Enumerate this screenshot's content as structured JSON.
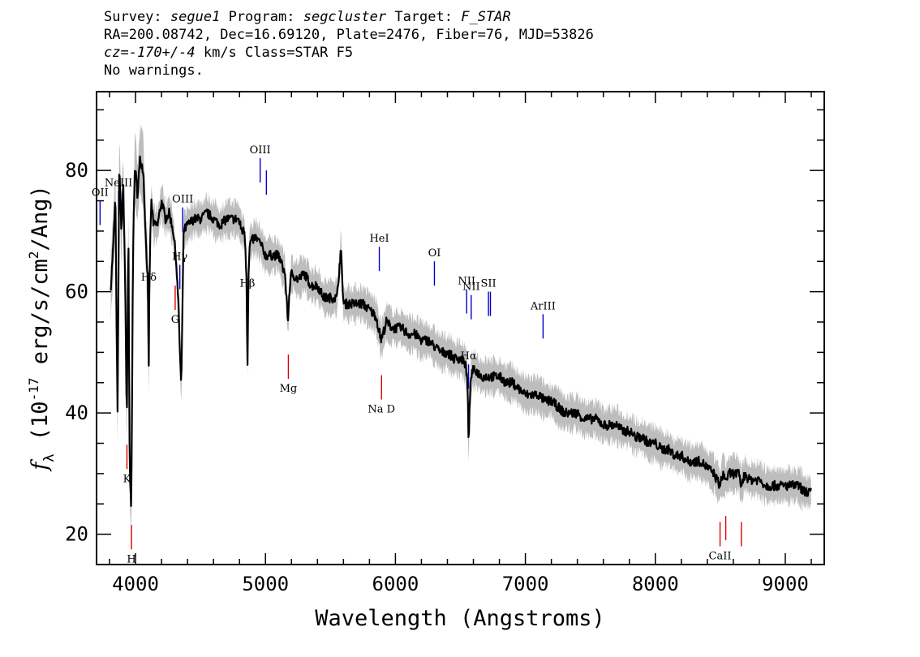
{
  "header": {
    "survey_label": "Survey:",
    "survey": "segue1",
    "program_label": "Program:",
    "program": "segcluster",
    "target_label": "Target:",
    "target": "F_STAR",
    "line2": "RA=200.08742, Dec=16.69120, Plate=2476, Fiber=76, MJD=53826",
    "cz": "cz=-170+/-4",
    "cz_rest": "km/s Class=STAR F5",
    "warnings": "No warnings."
  },
  "chart_data": {
    "type": "line",
    "xlabel": "Wavelength (Angstroms)",
    "ylabel_prefix": "f",
    "ylabel_sub": "λ",
    "ylabel_rest1": "(10",
    "ylabel_exp1": "-17",
    "ylabel_rest2": "erg/s/cm",
    "ylabel_exp2": "2",
    "ylabel_rest3": "/Ang)",
    "xlim": [
      3700,
      9300
    ],
    "ylim": [
      15,
      93
    ],
    "xticks": [
      4000,
      5000,
      6000,
      7000,
      8000,
      9000
    ],
    "yticks": [
      20,
      40,
      60,
      80
    ],
    "x_minor_step": 200,
    "y_minor_step": 5,
    "series": [
      {
        "color": "#000000",
        "x": [
          3810,
          3830,
          3845,
          3855,
          3862,
          3875,
          3890,
          3905,
          3920,
          3933,
          3945,
          3955,
          3968,
          3980,
          3995,
          4015,
          4035,
          4060,
          4080,
          4095,
          4101,
          4107,
          4120,
          4140,
          4170,
          4200,
          4230,
          4260,
          4290,
          4310,
          4330,
          4340,
          4352,
          4370,
          4400,
          4450,
          4500,
          4550,
          4600,
          4650,
          4700,
          4750,
          4790,
          4820,
          4840,
          4855,
          4861,
          4868,
          4880,
          4920,
          4960,
          5000,
          5050,
          5100,
          5150,
          5167,
          5175,
          5183,
          5200,
          5250,
          5300,
          5350,
          5400,
          5450,
          5500,
          5550,
          5580,
          5600,
          5650,
          5700,
          5750,
          5800,
          5850,
          5890,
          5930,
          5980,
          6050,
          6100,
          6150,
          6200,
          6250,
          6300,
          6350,
          6400,
          6450,
          6500,
          6540,
          6555,
          6563,
          6572,
          6590,
          6620,
          6660,
          6700,
          6750,
          6800,
          6850,
          6900,
          6950,
          7000,
          7050,
          7100,
          7150,
          7200,
          7250,
          7300,
          7350,
          7400,
          7450,
          7500,
          7550,
          7600,
          7650,
          7700,
          7750,
          7800,
          7850,
          7900,
          7950,
          8000,
          8050,
          8100,
          8150,
          8200,
          8250,
          8300,
          8350,
          8400,
          8450,
          8498,
          8520,
          8542,
          8570,
          8600,
          8640,
          8662,
          8690,
          8720,
          8760,
          8800,
          8850,
          8900,
          8950,
          9000,
          9050,
          9100,
          9150,
          9200
        ],
        "y": [
          61,
          68,
          76,
          52,
          40,
          82,
          70,
          78,
          62,
          38,
          71,
          30,
          24,
          66,
          81,
          76,
          82,
          80,
          68,
          62,
          44,
          62,
          75,
          71,
          71,
          75,
          72,
          73,
          70,
          66,
          58,
          51,
          44,
          70,
          71,
          72,
          72,
          73,
          72,
          71,
          72,
          72,
          72,
          70,
          70,
          62,
          46,
          62,
          68,
          69,
          68,
          66,
          66,
          66,
          63,
          57,
          55,
          60,
          63,
          62,
          63,
          61,
          61,
          59,
          59,
          59,
          67,
          58,
          58,
          58,
          58,
          57,
          56,
          52,
          55,
          54,
          54,
          53,
          53,
          52,
          52,
          51,
          50,
          50,
          49,
          49,
          48,
          45,
          34,
          43,
          47,
          47,
          46,
          46,
          46,
          46,
          45,
          45,
          44,
          43,
          43,
          43,
          42,
          42,
          41,
          40,
          40,
          40,
          39,
          39,
          39,
          38,
          38,
          38,
          37,
          37,
          36,
          36,
          35,
          35,
          34,
          34,
          33,
          33,
          32,
          32,
          32,
          31,
          30,
          28,
          30,
          29,
          30,
          30,
          30,
          28,
          30,
          29,
          29,
          29,
          28,
          28,
          28,
          28,
          28,
          28,
          27,
          27
        ]
      }
    ],
    "emission_lines": [
      {
        "label": "OII",
        "x": 3727
      },
      {
        "label": "NeIII",
        "x": 3869
      },
      {
        "label": "Hδ",
        "x": 4102
      },
      {
        "label": "Hγ",
        "x": 4341
      },
      {
        "label": "OIII",
        "x": 4363
      },
      {
        "label": "Hβ",
        "x": 4861
      },
      {
        "label": "OIII",
        "x": 4959
      },
      {
        "label": "",
        "x": 5007
      },
      {
        "label": "HeI",
        "x": 5876
      },
      {
        "label": "OI",
        "x": 6300
      },
      {
        "label": "NII",
        "x": 6548
      },
      {
        "label": "Hα",
        "x": 6563
      },
      {
        "label": "NII",
        "x": 6583
      },
      {
        "label": "SII",
        "x": 6716
      },
      {
        "label": "",
        "x": 6731
      },
      {
        "label": "ArIII",
        "x": 7136
      }
    ],
    "absorption_lines": [
      {
        "label": "K",
        "x": 3934
      },
      {
        "label": "H",
        "x": 3969
      },
      {
        "label": "G",
        "x": 4305
      },
      {
        "label": "Mg",
        "x": 5176
      },
      {
        "label": "Na D",
        "x": 5893
      },
      {
        "label": "CaII",
        "x": 8498
      },
      {
        "label": "",
        "x": 8542
      },
      {
        "label": "",
        "x": 8662
      }
    ],
    "colors": {
      "spectrum": "#000000",
      "noise_band": "#bdbdbd",
      "emission": "#0000cc",
      "absorption": "#dd0000",
      "axes": "#000000"
    }
  }
}
